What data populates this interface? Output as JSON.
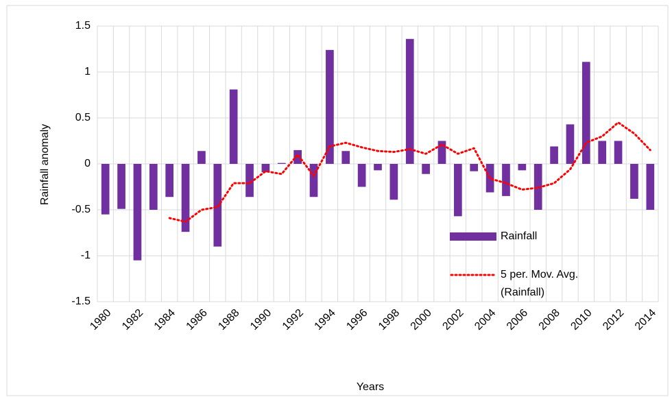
{
  "chart_data": {
    "type": "bar",
    "x_label": "Years",
    "y_label": "Rainfall anomaly",
    "categories": [
      "1980",
      null,
      "1982",
      null,
      "1984",
      null,
      "1986",
      null,
      "1988",
      null,
      "1990",
      null,
      "1992",
      null,
      "1994",
      null,
      "1996",
      null,
      "1998",
      null,
      "2000",
      null,
      "2002",
      null,
      "2004",
      null,
      "2006",
      null,
      "2008",
      null,
      "2010",
      null,
      "2012",
      null,
      "2014"
    ],
    "series": [
      {
        "name": "Rainfall",
        "type": "bar",
        "color": "#7030a0",
        "values": [
          -0.55,
          -0.49,
          -1.05,
          -0.5,
          -0.36,
          -0.74,
          0.14,
          -0.9,
          0.81,
          -0.36,
          -0.09,
          0.01,
          0.15,
          -0.36,
          1.24,
          0.14,
          -0.25,
          -0.07,
          -0.39,
          1.36,
          -0.11,
          0.25,
          -0.57,
          -0.08,
          -0.31,
          -0.35,
          -0.07,
          -0.5,
          0.19,
          0.43,
          1.11,
          0.25,
          0.25,
          -0.38,
          -0.5
        ]
      },
      {
        "name": "5 per. Mov. Avg. (Rainfall)",
        "type": "line",
        "color": "#ff0000",
        "values": [
          null,
          null,
          null,
          null,
          -0.59,
          -0.63,
          -0.5,
          -0.47,
          -0.21,
          -0.21,
          -0.08,
          -0.11,
          0.1,
          -0.13,
          0.19,
          0.23,
          0.18,
          0.14,
          0.13,
          0.16,
          0.11,
          0.21,
          0.11,
          0.17,
          -0.16,
          -0.21,
          -0.28,
          -0.26,
          -0.21,
          -0.06,
          0.23,
          0.3,
          0.45,
          0.33,
          0.15
        ]
      }
    ],
    "ylim": [
      -1.5,
      1.5
    ],
    "yticks": [
      -1.5,
      -1,
      -0.5,
      0,
      0.5,
      1,
      1.5
    ],
    "grid": true,
    "legend": "right"
  }
}
